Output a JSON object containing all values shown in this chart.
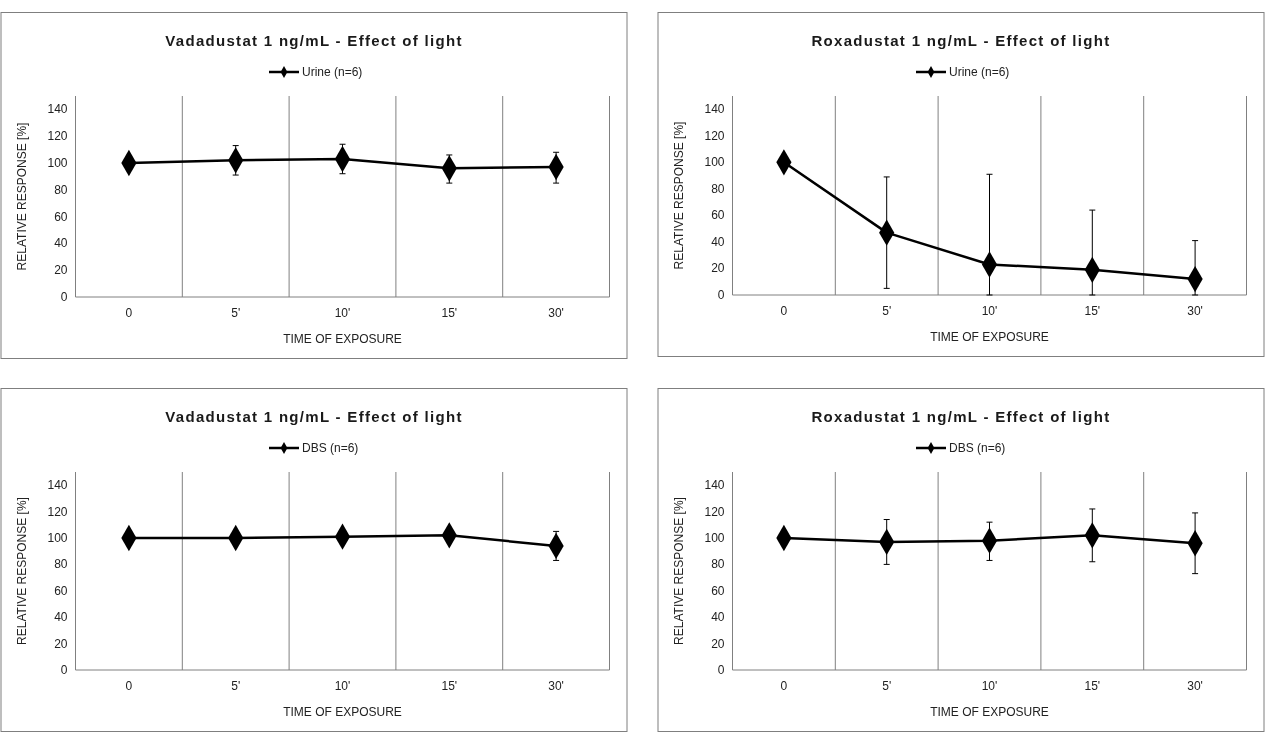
{
  "chart_data": [
    {
      "type": "line",
      "title": "Vadadustat 1 ng/mL - Effect of light",
      "xlabel": "TIME OF EXPOSURE",
      "ylabel": "RELATIVE RESPONSE [%]",
      "categories": [
        "0",
        "5'",
        "10'",
        "15'",
        "30'"
      ],
      "ylim": [
        0,
        150
      ],
      "yticks": [
        0,
        20,
        40,
        60,
        80,
        100,
        120,
        140
      ],
      "grid": "x",
      "legend": "top",
      "marker": "diamond",
      "series": [
        {
          "name": "Urine (n=6)",
          "color": "#000000",
          "values": [
            100,
            102,
            103,
            96,
            97
          ],
          "errors": [
            null,
            [
              91,
              113
            ],
            [
              92,
              114
            ],
            [
              85,
              106
            ],
            [
              85,
              108
            ]
          ]
        }
      ]
    },
    {
      "type": "line",
      "title": "Roxadustat 1 ng/mL - Effect of light",
      "xlabel": "TIME OF EXPOSURE",
      "ylabel": "RELATIVE RESPONSE [%]",
      "categories": [
        "0",
        "5'",
        "10'",
        "15'",
        "30'"
      ],
      "ylim": [
        0,
        150
      ],
      "yticks": [
        0,
        20,
        40,
        60,
        80,
        100,
        120,
        140
      ],
      "grid": "x",
      "legend": "top",
      "marker": "diamond",
      "series": [
        {
          "name": "Urine (n=6)",
          "color": "#000000",
          "values": [
            100,
            47,
            23,
            19,
            12
          ],
          "errors": [
            null,
            [
              5,
              89
            ],
            [
              0,
              91
            ],
            [
              0,
              64
            ],
            [
              0,
              41
            ]
          ]
        }
      ]
    },
    {
      "type": "line",
      "title": "Vadadustat 1 ng/mL - Effect of light",
      "xlabel": "TIME OF EXPOSURE",
      "ylabel": "RELATIVE RESPONSE [%]",
      "categories": [
        "0",
        "5'",
        "10'",
        "15'",
        "30'"
      ],
      "ylim": [
        0,
        150
      ],
      "yticks": [
        0,
        20,
        40,
        60,
        80,
        100,
        120,
        140
      ],
      "grid": "x",
      "legend": "top",
      "marker": "diamond",
      "series": [
        {
          "name": "DBS (n=6)",
          "color": "#000000",
          "values": [
            100,
            100,
            101,
            102,
            94
          ],
          "errors": [
            null,
            null,
            null,
            null,
            [
              83,
              105
            ]
          ]
        }
      ]
    },
    {
      "type": "line",
      "title": "Roxadustat 1 ng/mL - Effect of light",
      "xlabel": "TIME OF EXPOSURE",
      "ylabel": "RELATIVE RESPONSE [%]",
      "categories": [
        "0",
        "5'",
        "10'",
        "15'",
        "30'"
      ],
      "ylim": [
        0,
        150
      ],
      "yticks": [
        0,
        20,
        40,
        60,
        80,
        100,
        120,
        140
      ],
      "grid": "x",
      "legend": "top",
      "marker": "diamond",
      "series": [
        {
          "name": "DBS (n=6)",
          "color": "#000000",
          "values": [
            100,
            97,
            98,
            102,
            96
          ],
          "errors": [
            null,
            [
              80,
              114
            ],
            [
              83,
              112
            ],
            [
              82,
              122
            ],
            [
              73,
              119
            ]
          ]
        }
      ]
    }
  ]
}
